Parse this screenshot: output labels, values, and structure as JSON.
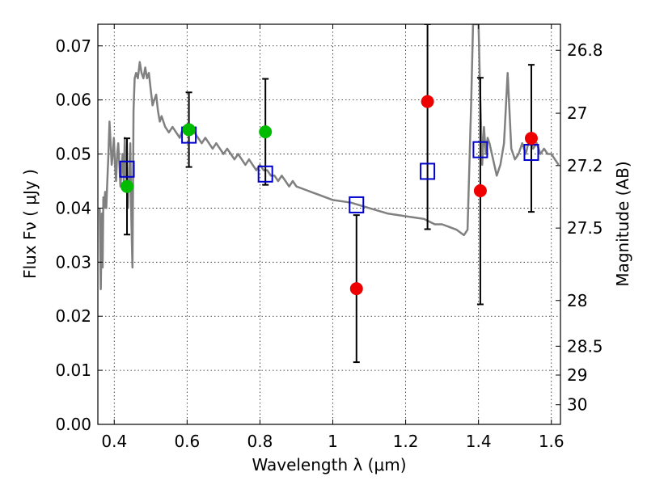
{
  "chart_data": {
    "type": "scatter",
    "xlabel": "Wavelength  λ (μm)",
    "ylabel": "Flux  Fν  ( μJy )",
    "ylabel_right": "Magnitude (AB)",
    "xlim": [
      0.355,
      1.625
    ],
    "ylim": [
      0.0,
      0.074
    ],
    "grid": true,
    "x_ticks": [
      {
        "value": 0.4,
        "label": "0.4"
      },
      {
        "value": 0.6,
        "label": "0.6"
      },
      {
        "value": 0.8,
        "label": "0.8"
      },
      {
        "value": 1.0,
        "label": "1"
      },
      {
        "value": 1.2,
        "label": "1.2"
      },
      {
        "value": 1.4,
        "label": "1.4"
      },
      {
        "value": 1.6,
        "label": "1.6"
      }
    ],
    "y_ticks": [
      {
        "value": 0.0,
        "label": "0.00"
      },
      {
        "value": 0.01,
        "label": "0.01"
      },
      {
        "value": 0.02,
        "label": "0.02"
      },
      {
        "value": 0.03,
        "label": "0.03"
      },
      {
        "value": 0.04,
        "label": "0.04"
      },
      {
        "value": 0.05,
        "label": "0.05"
      },
      {
        "value": 0.06,
        "label": "0.06"
      },
      {
        "value": 0.07,
        "label": "0.07"
      }
    ],
    "mag_ticks": [
      {
        "mag": 26.8,
        "label": "26.8"
      },
      {
        "mag": 27.0,
        "label": "27"
      },
      {
        "mag": 27.2,
        "label": "27.2"
      },
      {
        "mag": 27.5,
        "label": "27.5"
      },
      {
        "mag": 28.0,
        "label": "28"
      },
      {
        "mag": 28.5,
        "label": "28.5"
      },
      {
        "mag": 29.0,
        "label": "29"
      },
      {
        "mag": 30.0,
        "label": "30"
      }
    ],
    "model_spectrum": {
      "color": "#808080",
      "x": [
        0.36,
        0.363,
        0.366,
        0.368,
        0.37,
        0.372,
        0.375,
        0.378,
        0.381,
        0.384,
        0.387,
        0.39,
        0.393,
        0.396,
        0.399,
        0.402,
        0.405,
        0.408,
        0.411,
        0.414,
        0.417,
        0.42,
        0.423,
        0.426,
        0.429,
        0.432,
        0.435,
        0.438,
        0.441,
        0.444,
        0.447,
        0.45,
        0.453,
        0.456,
        0.46,
        0.465,
        0.47,
        0.475,
        0.48,
        0.485,
        0.49,
        0.495,
        0.5,
        0.505,
        0.51,
        0.515,
        0.52,
        0.525,
        0.53,
        0.54,
        0.55,
        0.56,
        0.57,
        0.58,
        0.59,
        0.6,
        0.61,
        0.62,
        0.63,
        0.64,
        0.65,
        0.66,
        0.67,
        0.68,
        0.69,
        0.7,
        0.71,
        0.72,
        0.73,
        0.74,
        0.75,
        0.76,
        0.77,
        0.78,
        0.79,
        0.8,
        0.81,
        0.82,
        0.83,
        0.84,
        0.85,
        0.86,
        0.87,
        0.88,
        0.89,
        0.9,
        0.92,
        0.94,
        0.96,
        0.98,
        1.0,
        1.05,
        1.1,
        1.15,
        1.2,
        1.25,
        1.28,
        1.3,
        1.32,
        1.34,
        1.36,
        1.37,
        1.38,
        1.385,
        1.39,
        1.395,
        1.4,
        1.405,
        1.41,
        1.415,
        1.42,
        1.425,
        1.43,
        1.44,
        1.45,
        1.46,
        1.47,
        1.48,
        1.49,
        1.5,
        1.51,
        1.52,
        1.53,
        1.54,
        1.55,
        1.56,
        1.57,
        1.58,
        1.59,
        1.6,
        1.61,
        1.62
      ],
      "y": [
        0.04,
        0.025,
        0.039,
        0.029,
        0.042,
        0.04,
        0.043,
        0.04,
        0.045,
        0.05,
        0.056,
        0.052,
        0.048,
        0.05,
        0.053,
        0.048,
        0.045,
        0.05,
        0.052,
        0.048,
        0.044,
        0.047,
        0.05,
        0.045,
        0.053,
        0.046,
        0.045,
        0.04,
        0.047,
        0.052,
        0.038,
        0.029,
        0.058,
        0.064,
        0.065,
        0.064,
        0.067,
        0.065,
        0.064,
        0.066,
        0.064,
        0.065,
        0.062,
        0.059,
        0.06,
        0.061,
        0.058,
        0.056,
        0.057,
        0.055,
        0.054,
        0.055,
        0.054,
        0.053,
        0.055,
        0.054,
        0.055,
        0.054,
        0.053,
        0.052,
        0.053,
        0.052,
        0.051,
        0.052,
        0.051,
        0.05,
        0.051,
        0.05,
        0.049,
        0.05,
        0.049,
        0.048,
        0.049,
        0.048,
        0.047,
        0.048,
        0.047,
        0.047,
        0.046,
        0.046,
        0.045,
        0.046,
        0.045,
        0.044,
        0.045,
        0.044,
        0.0435,
        0.043,
        0.0425,
        0.042,
        0.0415,
        0.041,
        0.04,
        0.039,
        0.0385,
        0.038,
        0.037,
        0.037,
        0.0365,
        0.036,
        0.035,
        0.036,
        0.06,
        0.074,
        0.074,
        0.074,
        0.074,
        0.06,
        0.048,
        0.055,
        0.05,
        0.053,
        0.052,
        0.049,
        0.046,
        0.048,
        0.052,
        0.065,
        0.051,
        0.049,
        0.05,
        0.052,
        0.05,
        0.053,
        0.051,
        0.052,
        0.05,
        0.051,
        0.05,
        0.05,
        0.049,
        0.048
      ]
    },
    "series": [
      {
        "name": "",
        "marker": "square-open",
        "color": "#0000cc",
        "points": [
          {
            "x": 0.435,
            "y": 0.0472
          },
          {
            "x": 0.605,
            "y": 0.0535
          },
          {
            "x": 0.815,
            "y": 0.0463
          },
          {
            "x": 1.065,
            "y": 0.0406
          },
          {
            "x": 1.26,
            "y": 0.0468
          },
          {
            "x": 1.405,
            "y": 0.0508
          },
          {
            "x": 1.545,
            "y": 0.0503
          }
        ]
      },
      {
        "name": "",
        "marker": "circle",
        "color": "#00bb00",
        "points": [
          {
            "x": 0.435,
            "y": 0.044,
            "err_low": 0.0351,
            "err_high": 0.0529
          },
          {
            "x": 0.605,
            "y": 0.0545,
            "err_low": 0.0476,
            "err_high": 0.0614
          },
          {
            "x": 0.815,
            "y": 0.0541,
            "err_low": 0.0443,
            "err_high": 0.0639
          }
        ]
      },
      {
        "name": "",
        "marker": "circle",
        "color": "#ee0000",
        "points": [
          {
            "x": 1.065,
            "y": 0.0251,
            "err_low": 0.0115,
            "err_high": 0.0387
          },
          {
            "x": 1.26,
            "y": 0.0597,
            "err_low": 0.0361,
            "err_high": 0.074
          },
          {
            "x": 1.405,
            "y": 0.0432,
            "err_low": 0.0222,
            "err_high": 0.0641
          },
          {
            "x": 1.545,
            "y": 0.0529,
            "err_low": 0.0393,
            "err_high": 0.0665
          }
        ]
      }
    ]
  }
}
